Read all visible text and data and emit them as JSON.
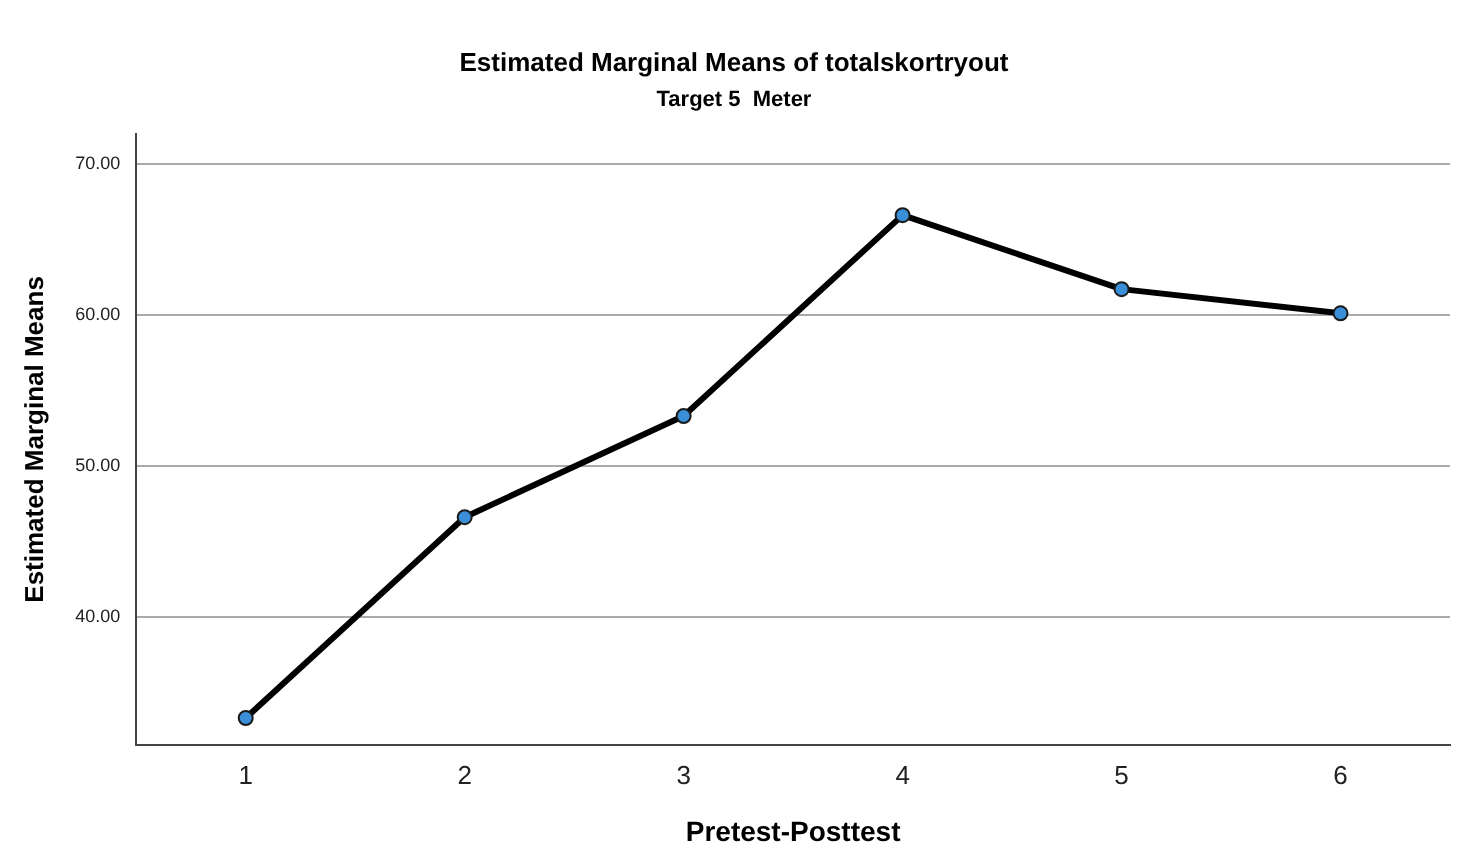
{
  "chart_data": {
    "type": "line",
    "title": "Estimated Marginal Means of totalskortryout",
    "subtitle": "Target 5  Meter",
    "xlabel": "Pretest-Posttest",
    "ylabel": "Estimated Marginal Means",
    "categories": [
      "1",
      "2",
      "3",
      "4",
      "5",
      "6"
    ],
    "series": [
      {
        "color": "#000000",
        "values": [
          33.3,
          46.6,
          53.3,
          66.6,
          61.7,
          60.1
        ]
      }
    ],
    "ylim": [
      31.5,
      72
    ],
    "yticks": [
      {
        "value": 40,
        "label": "40.00"
      },
      {
        "value": 50,
        "label": "50.00"
      },
      {
        "value": 60,
        "label": "60.00"
      },
      {
        "value": 70,
        "label": "70.00"
      }
    ],
    "grid": "y",
    "marker": "circle",
    "line_style": "solid"
  }
}
